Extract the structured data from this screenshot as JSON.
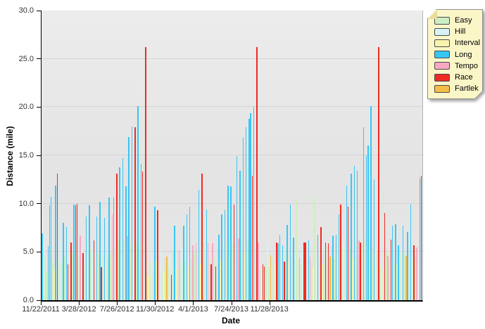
{
  "chart_data": {
    "type": "bar",
    "title": "",
    "xlabel": "Date",
    "ylabel": "Distance (mile)",
    "ylim": [
      0,
      30
    ],
    "grid": true,
    "legend_position": "right",
    "yticks": [
      {
        "value": 0,
        "label": "0.0"
      },
      {
        "value": 5,
        "label": "5.0"
      },
      {
        "value": 10,
        "label": "10.0"
      },
      {
        "value": 15,
        "label": "15.0"
      },
      {
        "value": 20,
        "label": "20.0"
      },
      {
        "value": 25,
        "label": "25.0"
      },
      {
        "value": 30,
        "label": "30.0"
      }
    ],
    "xticks": [
      {
        "index": 0,
        "label": "11/22/2011"
      },
      {
        "index": 25,
        "label": "3/28/2012"
      },
      {
        "index": 50,
        "label": "7/26/2012"
      },
      {
        "index": 75,
        "label": "11/30/2012"
      },
      {
        "index": 100,
        "label": "4/1/2013"
      },
      {
        "index": 125,
        "label": "7/24/2013"
      },
      {
        "index": 150,
        "label": "11/28/2013"
      }
    ],
    "legend": [
      {
        "code": "E",
        "label": "Easy",
        "color": "#cdeec2"
      },
      {
        "code": "H",
        "label": "Hill",
        "color": "#d6f2f4"
      },
      {
        "code": "I",
        "label": "Interval",
        "color": "#f8f4ac"
      },
      {
        "code": "L",
        "label": "Long",
        "color": "#38c6f4"
      },
      {
        "code": "T",
        "label": "Tempo",
        "color": "#f7a8c4"
      },
      {
        "code": "R",
        "label": "Race",
        "color": "#ee2b22"
      },
      {
        "code": "F",
        "label": "Fartlek",
        "color": "#f5bc47"
      }
    ],
    "bars": [
      [
        "L",
        6.9
      ],
      [
        "H",
        5.8
      ],
      [
        "E",
        4.5
      ],
      [
        "E",
        3.0
      ],
      [
        "L",
        5.6
      ],
      [
        "L",
        9.8
      ],
      [
        "L",
        10.7
      ],
      [
        "E",
        4.0
      ],
      [
        "I",
        3.2
      ],
      [
        "L",
        11.9
      ],
      [
        "R",
        13.1
      ],
      [
        "E",
        4.2
      ],
      [
        "H",
        6.0
      ],
      [
        "E",
        3.8
      ],
      [
        "L",
        8.0
      ],
      [
        "E",
        4.6
      ],
      [
        "L",
        7.6
      ],
      [
        "R",
        3.7
      ],
      [
        "I",
        3.4
      ],
      [
        "R",
        6.0
      ],
      [
        "E",
        5.0
      ],
      [
        "L",
        9.9
      ],
      [
        "R",
        9.8
      ],
      [
        "R",
        10.0
      ],
      [
        "E",
        4.4
      ],
      [
        "T",
        6.7
      ],
      [
        "H",
        5.4
      ],
      [
        "R",
        4.9
      ],
      [
        "E",
        3.6
      ],
      [
        "L",
        8.7
      ],
      [
        "I",
        4.0
      ],
      [
        "L",
        9.8
      ],
      [
        "E",
        5.2
      ],
      [
        "H",
        6.0
      ],
      [
        "R",
        6.2
      ],
      [
        "E",
        4.1
      ],
      [
        "L",
        8.7
      ],
      [
        "E",
        4.8
      ],
      [
        "L",
        10.2
      ],
      [
        "R",
        3.4
      ],
      [
        "E",
        5.0
      ],
      [
        "L",
        8.5
      ],
      [
        "I",
        3.6
      ],
      [
        "E",
        4.3
      ],
      [
        "L",
        10.6
      ],
      [
        "E",
        4.9
      ],
      [
        "T",
        8.9
      ],
      [
        "L",
        10.6
      ],
      [
        "E",
        5.5
      ],
      [
        "R",
        13.1
      ],
      [
        "E",
        6.1
      ],
      [
        "L",
        13.8
      ],
      [
        "I",
        4.5
      ],
      [
        "L",
        14.7
      ],
      [
        "E",
        6.2
      ],
      [
        "L",
        11.8
      ],
      [
        "T",
        6.6
      ],
      [
        "L",
        16.9
      ],
      [
        "E",
        6.0
      ],
      [
        "L",
        18.0
      ],
      [
        "I",
        5.1
      ],
      [
        "R",
        17.9
      ],
      [
        "E",
        6.0
      ],
      [
        "L",
        20.1
      ],
      [
        "E",
        5.5
      ],
      [
        "L",
        14.1
      ],
      [
        "R",
        13.3
      ],
      [
        "H",
        4.4
      ],
      [
        "R",
        26.2
      ],
      [
        "E",
        3.0
      ],
      [
        "I",
        2.5
      ],
      [
        "E",
        4.0
      ],
      [
        "H",
        5.2
      ],
      [
        "E",
        3.5
      ],
      [
        "L",
        9.7
      ],
      [
        "I",
        4.1
      ],
      [
        "R",
        9.3
      ],
      [
        "E",
        4.6
      ],
      [
        "H",
        5.7
      ],
      [
        "E",
        2.8
      ],
      [
        "I",
        3.0
      ],
      [
        "E",
        4.2
      ],
      [
        "F",
        4.5
      ],
      [
        "E",
        3.6
      ],
      [
        "H",
        4.8
      ],
      [
        "R",
        2.6
      ],
      [
        "E",
        5.0
      ],
      [
        "L",
        7.7
      ],
      [
        "I",
        3.3
      ],
      [
        "E",
        4.4
      ],
      [
        "T",
        5.2
      ],
      [
        "E",
        3.9
      ],
      [
        "H",
        5.5
      ],
      [
        "L",
        7.7
      ],
      [
        "E",
        4.0
      ],
      [
        "L",
        8.9
      ],
      [
        "I",
        3.5
      ],
      [
        "L",
        9.7
      ],
      [
        "E",
        4.3
      ],
      [
        "T",
        5.7
      ],
      [
        "E",
        5.1
      ],
      [
        "T",
        5.9
      ],
      [
        "E",
        4.7
      ],
      [
        "L",
        11.4
      ],
      [
        "I",
        3.8
      ],
      [
        "R",
        13.1
      ],
      [
        "E",
        6.0
      ],
      [
        "E",
        4.4
      ],
      [
        "L",
        9.4
      ],
      [
        "T",
        6.0
      ],
      [
        "E",
        4.2
      ],
      [
        "R",
        3.7
      ],
      [
        "T",
        5.9
      ],
      [
        "E",
        4.5
      ],
      [
        "R",
        3.5
      ],
      [
        "E",
        5.6
      ],
      [
        "L",
        6.8
      ],
      [
        "I",
        4.0
      ],
      [
        "L",
        8.9
      ],
      [
        "E",
        5.3
      ],
      [
        "L",
        9.3
      ],
      [
        "E",
        6.2
      ],
      [
        "L",
        11.9
      ],
      [
        "I",
        4.6
      ],
      [
        "L",
        11.8
      ],
      [
        "E",
        5.8
      ],
      [
        "R",
        9.9
      ],
      [
        "E",
        6.0
      ],
      [
        "L",
        14.9
      ],
      [
        "T",
        6.4
      ],
      [
        "L",
        13.4
      ],
      [
        "E",
        6.1
      ],
      [
        "L",
        16.8
      ],
      [
        "I",
        5.0
      ],
      [
        "L",
        17.9
      ],
      [
        "E",
        6.3
      ],
      [
        "L",
        18.8
      ],
      [
        "L",
        19.4
      ],
      [
        "R",
        12.9
      ],
      [
        "L",
        20.0
      ],
      [
        "E",
        5.5
      ],
      [
        "R",
        26.2
      ],
      [
        "T",
        6.0
      ],
      [
        "E",
        3.2
      ],
      [
        "I",
        2.8
      ],
      [
        "R",
        3.7
      ],
      [
        "R",
        3.5
      ],
      [
        "E",
        4.0
      ],
      [
        "H",
        5.7
      ],
      [
        "E",
        3.4
      ],
      [
        "F",
        4.7
      ],
      [
        "E",
        4.5
      ],
      [
        "E",
        6.7
      ],
      [
        "I",
        3.6
      ],
      [
        "R",
        6.0
      ],
      [
        "L",
        5.9
      ],
      [
        "L",
        6.8
      ],
      [
        "E",
        4.8
      ],
      [
        "L",
        5.7
      ],
      [
        "R",
        4.0
      ],
      [
        "E",
        5.2
      ],
      [
        "L",
        7.8
      ],
      [
        "I",
        4.2
      ],
      [
        "L",
        9.9
      ],
      [
        "E",
        4.6
      ],
      [
        "L",
        6.5
      ],
      [
        "H",
        5.0
      ],
      [
        "E",
        10.5
      ],
      [
        "E",
        4.1
      ],
      [
        "F",
        4.4
      ],
      [
        "E",
        3.8
      ],
      [
        "H",
        5.4
      ],
      [
        "R",
        6.0
      ],
      [
        "R",
        6.0
      ],
      [
        "E",
        4.7
      ],
      [
        "L",
        6.2
      ],
      [
        "T",
        4.5
      ],
      [
        "E",
        3.9
      ],
      [
        "I",
        3.4
      ],
      [
        "E",
        10.7
      ],
      [
        "H",
        4.9
      ],
      [
        "L",
        6.8
      ],
      [
        "E",
        4.3
      ],
      [
        "R",
        7.6
      ],
      [
        "I",
        3.7
      ],
      [
        "E",
        5.0
      ],
      [
        "R",
        6.0
      ],
      [
        "E",
        4.4
      ],
      [
        "R",
        5.9
      ],
      [
        "F",
        4.5
      ],
      [
        "E",
        5.6
      ],
      [
        "L",
        6.7
      ],
      [
        "E",
        4.2
      ],
      [
        "L",
        6.8
      ],
      [
        "I",
        4.0
      ],
      [
        "L",
        8.9
      ],
      [
        "R",
        9.9
      ],
      [
        "E",
        5.3
      ],
      [
        "H",
        5.8
      ],
      [
        "E",
        6.0
      ],
      [
        "L",
        11.9
      ],
      [
        "R",
        9.7
      ],
      [
        "E",
        5.5
      ],
      [
        "L",
        13.1
      ],
      [
        "I",
        4.4
      ],
      [
        "L",
        13.9
      ],
      [
        "E",
        6.1
      ],
      [
        "L",
        13.4
      ],
      [
        "T",
        6.2
      ],
      [
        "R",
        6.0
      ],
      [
        "E",
        5.7
      ],
      [
        "L",
        17.9
      ],
      [
        "E",
        6.4
      ],
      [
        "L",
        15.0
      ],
      [
        "L",
        16.0
      ],
      [
        "I",
        5.2
      ],
      [
        "L",
        20.1
      ],
      [
        "E",
        6.0
      ],
      [
        "L",
        12.5
      ],
      [
        "H",
        5.5
      ],
      [
        "E",
        4.8
      ],
      [
        "R",
        26.2
      ],
      [
        "E",
        3.5
      ],
      [
        "I",
        3.0
      ],
      [
        "E",
        11.2
      ],
      [
        "R",
        9.0
      ],
      [
        "E",
        5.0
      ],
      [
        "T",
        4.6
      ],
      [
        "E",
        4.2
      ],
      [
        "R",
        6.3
      ],
      [
        "L",
        7.7
      ],
      [
        "E",
        4.5
      ],
      [
        "L",
        7.9
      ],
      [
        "I",
        3.8
      ],
      [
        "L",
        5.7
      ],
      [
        "E",
        4.9
      ],
      [
        "H",
        5.3
      ],
      [
        "L",
        7.7
      ],
      [
        "E",
        5.1
      ],
      [
        "F",
        4.6
      ],
      [
        "L",
        7.1
      ],
      [
        "E",
        5.4
      ],
      [
        "L",
        9.9
      ],
      [
        "I",
        4.1
      ],
      [
        "R",
        5.7
      ],
      [
        "E",
        4.7
      ],
      [
        "T",
        5.5
      ],
      [
        "H",
        5.0
      ],
      [
        "L",
        12.6
      ],
      [
        "R",
        12.9
      ]
    ]
  }
}
